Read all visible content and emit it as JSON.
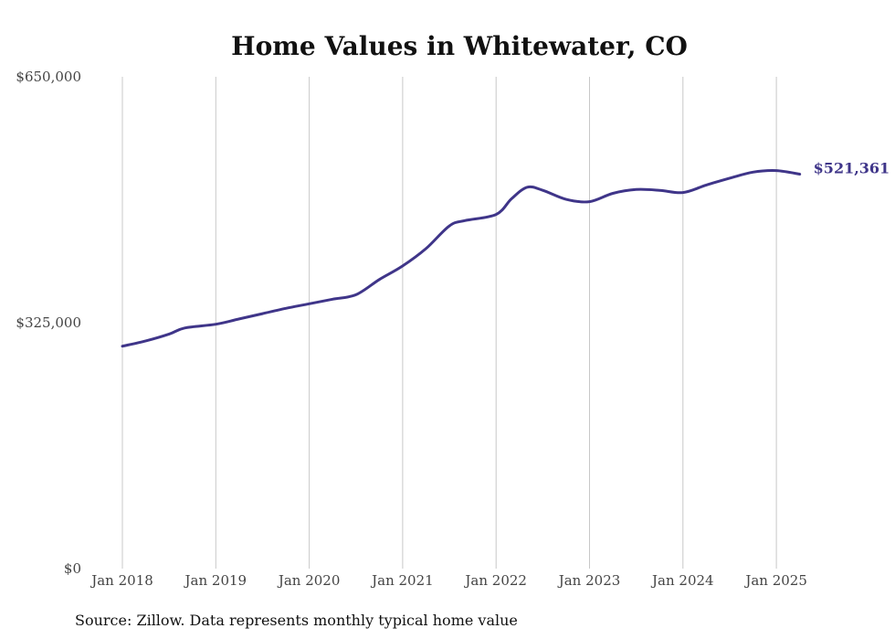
{
  "chart_data": {
    "type": "line",
    "title": "Home Values in Whitewater, CO",
    "source": "Source: Zillow. Data represents monthly typical home value",
    "xlabel": "",
    "ylabel": "",
    "x_ticks": [
      "Jan 2018",
      "Jan 2019",
      "Jan 2020",
      "Jan 2021",
      "Jan 2022",
      "Jan 2023",
      "Jan 2024",
      "Jan 2025"
    ],
    "y_ticks": [
      {
        "value": 0,
        "label": "$0"
      },
      {
        "value": 325000,
        "label": "$325,000"
      },
      {
        "value": 650000,
        "label": "$650,000"
      }
    ],
    "ylim": [
      0,
      650000
    ],
    "xlim": [
      "2018-01",
      "2025-04"
    ],
    "grid": {
      "vertical": true,
      "horizontal": false
    },
    "line_color": "#3f3589",
    "end_label": "$521,361",
    "series": [
      {
        "values": [
          {
            "x": "2018-01",
            "y": 294000
          },
          {
            "x": "2018-04",
            "y": 301000
          },
          {
            "x": "2018-07",
            "y": 310000
          },
          {
            "x": "2018-09",
            "y": 318000
          },
          {
            "x": "2019-01",
            "y": 323000
          },
          {
            "x": "2019-04",
            "y": 330000
          },
          {
            "x": "2019-07",
            "y": 337000
          },
          {
            "x": "2019-10",
            "y": 344000
          },
          {
            "x": "2020-01",
            "y": 350000
          },
          {
            "x": "2020-04",
            "y": 356000
          },
          {
            "x": "2020-07",
            "y": 362000
          },
          {
            "x": "2020-10",
            "y": 382000
          },
          {
            "x": "2021-01",
            "y": 400000
          },
          {
            "x": "2021-04",
            "y": 423000
          },
          {
            "x": "2021-07",
            "y": 453000
          },
          {
            "x": "2021-09",
            "y": 460000
          },
          {
            "x": "2022-01",
            "y": 468000
          },
          {
            "x": "2022-03",
            "y": 489000
          },
          {
            "x": "2022-05",
            "y": 504000
          },
          {
            "x": "2022-07",
            "y": 500000
          },
          {
            "x": "2022-10",
            "y": 488000
          },
          {
            "x": "2023-01",
            "y": 485000
          },
          {
            "x": "2023-04",
            "y": 496000
          },
          {
            "x": "2023-07",
            "y": 501000
          },
          {
            "x": "2023-10",
            "y": 500000
          },
          {
            "x": "2024-01",
            "y": 497000
          },
          {
            "x": "2024-04",
            "y": 507000
          },
          {
            "x": "2024-07",
            "y": 516000
          },
          {
            "x": "2024-10",
            "y": 524000
          },
          {
            "x": "2025-01",
            "y": 526000
          },
          {
            "x": "2025-04",
            "y": 521361
          }
        ]
      }
    ]
  }
}
